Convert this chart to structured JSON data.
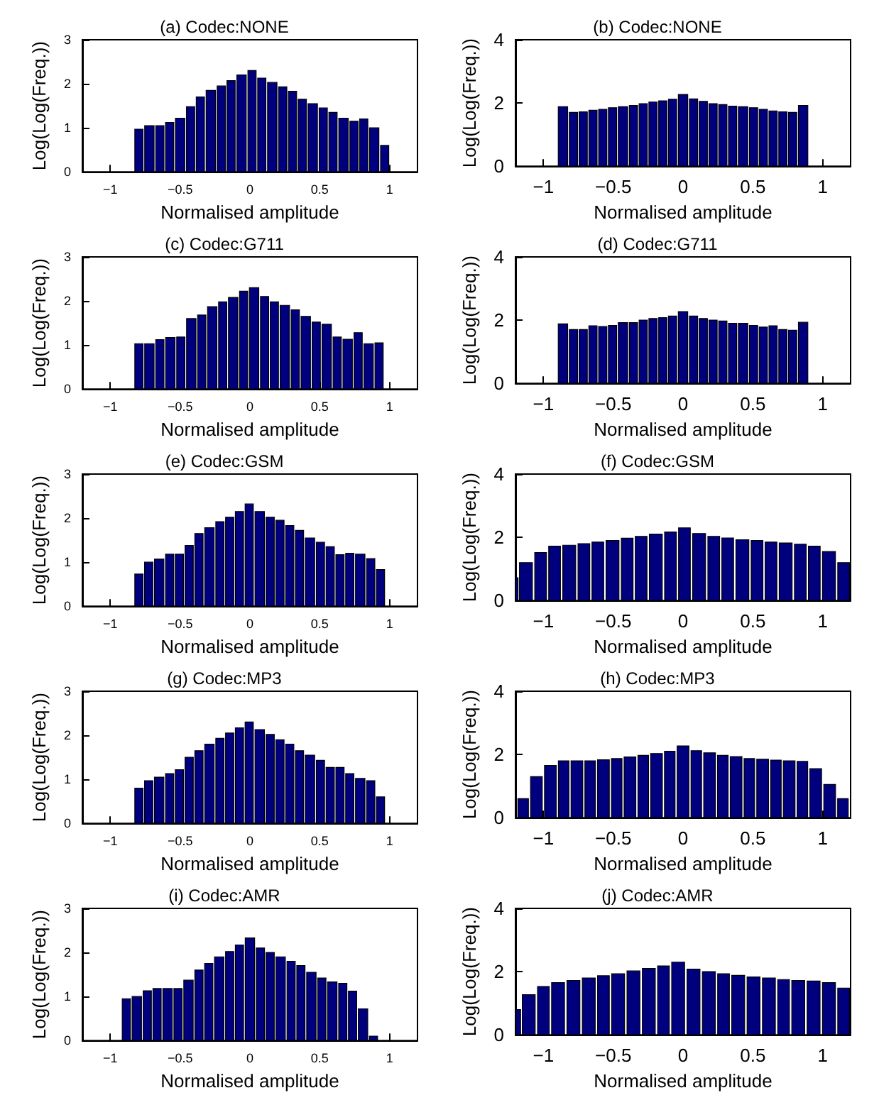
{
  "chart_data": [
    {
      "type": "histogram",
      "title": "(a) Codec:NONE",
      "xlabel": "Normalised amplitude",
      "ylabel": "Log(Log(Freq.))",
      "color": "#00007f",
      "xlim": [
        -1.2,
        1.2
      ],
      "xticks": [
        -1,
        -0.5,
        0,
        0.5,
        1
      ],
      "ylim": [
        0,
        3
      ],
      "yticks": [
        0,
        1,
        2,
        3
      ],
      "grid": false,
      "bins": [
        -0.83,
        -0.76,
        -0.68,
        -0.61,
        -0.54,
        -0.46,
        -0.39,
        -0.32,
        -0.24,
        -0.17,
        -0.1,
        -0.02,
        0.05,
        0.12,
        0.2,
        0.27,
        0.34,
        0.41,
        0.49,
        0.56,
        0.63,
        0.71,
        0.78,
        0.85,
        0.93,
        1.0
      ],
      "values": [
        0.97,
        1.05,
        1.05,
        1.12,
        1.22,
        1.48,
        1.7,
        1.85,
        1.95,
        2.07,
        2.2,
        2.3,
        2.13,
        2.03,
        1.93,
        1.83,
        1.65,
        1.55,
        1.45,
        1.35,
        1.22,
        1.15,
        1.2,
        1.0,
        0.6
      ]
    },
    {
      "type": "histogram",
      "title": "(b) Codec:NONE",
      "xlabel": "Normalised amplitude",
      "ylabel": "Log(Log(Freq.))",
      "color": "#00007f",
      "xlim": [
        -1.2,
        1.2
      ],
      "xticks": [
        -1,
        -0.5,
        0,
        0.5,
        1
      ],
      "ylim": [
        0,
        4
      ],
      "yticks": [
        0,
        2,
        4
      ],
      "grid": false,
      "bins": [
        -0.9,
        -0.82,
        -0.75,
        -0.68,
        -0.61,
        -0.54,
        -0.47,
        -0.39,
        -0.32,
        -0.25,
        -0.18,
        -0.11,
        -0.04,
        0.04,
        0.11,
        0.18,
        0.25,
        0.32,
        0.39,
        0.47,
        0.54,
        0.61,
        0.68,
        0.75,
        0.82,
        0.9
      ],
      "values": [
        1.88,
        1.7,
        1.72,
        1.77,
        1.8,
        1.85,
        1.88,
        1.92,
        1.98,
        2.03,
        2.07,
        2.12,
        2.27,
        2.13,
        2.05,
        1.98,
        1.95,
        1.9,
        1.88,
        1.85,
        1.8,
        1.75,
        1.72,
        1.7,
        1.92
      ]
    },
    {
      "type": "histogram",
      "title": "(c) Codec:G711",
      "xlabel": "Normalised amplitude",
      "ylabel": "Log(Log(Freq.))",
      "color": "#00007f",
      "xlim": [
        -1.2,
        1.2
      ],
      "xticks": [
        -1,
        -0.5,
        0,
        0.5,
        1
      ],
      "ylim": [
        0,
        3
      ],
      "yticks": [
        0,
        1,
        2,
        3
      ],
      "grid": false,
      "bins": [
        -0.83,
        -0.76,
        -0.68,
        -0.61,
        -0.53,
        -0.46,
        -0.38,
        -0.31,
        -0.23,
        -0.16,
        -0.08,
        -0.01,
        0.07,
        0.14,
        0.21,
        0.29,
        0.36,
        0.44,
        0.51,
        0.59,
        0.66,
        0.74,
        0.81,
        0.89,
        0.96
      ],
      "values": [
        1.03,
        1.03,
        1.12,
        1.17,
        1.18,
        1.6,
        1.68,
        1.87,
        1.98,
        2.08,
        2.22,
        2.3,
        2.1,
        1.98,
        1.9,
        1.8,
        1.65,
        1.52,
        1.47,
        1.18,
        1.13,
        1.28,
        1.03,
        1.05
      ]
    },
    {
      "type": "histogram",
      "title": "(d) Codec:G711",
      "xlabel": "Normalised amplitude",
      "ylabel": "Log(Log(Freq.))",
      "color": "#00007f",
      "xlim": [
        -1.2,
        1.2
      ],
      "xticks": [
        -1,
        -0.5,
        0,
        0.5,
        1
      ],
      "ylim": [
        0,
        4
      ],
      "yticks": [
        0,
        2,
        4
      ],
      "grid": false,
      "bins": [
        -0.9,
        -0.82,
        -0.75,
        -0.68,
        -0.61,
        -0.54,
        -0.47,
        -0.39,
        -0.32,
        -0.25,
        -0.18,
        -0.11,
        -0.04,
        0.04,
        0.11,
        0.18,
        0.25,
        0.32,
        0.39,
        0.47,
        0.54,
        0.61,
        0.68,
        0.75,
        0.82,
        0.9
      ],
      "values": [
        1.88,
        1.7,
        1.7,
        1.82,
        1.8,
        1.83,
        1.92,
        1.92,
        2.0,
        2.05,
        2.08,
        2.13,
        2.27,
        2.13,
        2.05,
        2.0,
        1.97,
        1.9,
        1.9,
        1.83,
        1.78,
        1.82,
        1.7,
        1.68,
        1.93
      ]
    },
    {
      "type": "histogram",
      "title": "(e) Codec:GSM",
      "xlabel": "Normalised amplitude",
      "ylabel": "Log(Log(Freq.))",
      "color": "#00007f",
      "xlim": [
        -1.2,
        1.2
      ],
      "xticks": [
        -1,
        -0.5,
        0,
        0.5,
        1
      ],
      "ylim": [
        0,
        3
      ],
      "yticks": [
        0,
        1,
        2,
        3
      ],
      "grid": false,
      "bins": [
        -0.83,
        -0.76,
        -0.69,
        -0.61,
        -0.54,
        -0.47,
        -0.4,
        -0.33,
        -0.25,
        -0.18,
        -0.11,
        -0.04,
        0.03,
        0.11,
        0.18,
        0.25,
        0.32,
        0.39,
        0.47,
        0.54,
        0.61,
        0.68,
        0.75,
        0.83,
        0.9,
        0.97
      ],
      "values": [
        0.73,
        1.0,
        1.07,
        1.18,
        1.18,
        1.38,
        1.65,
        1.78,
        1.92,
        2.02,
        2.15,
        2.32,
        2.15,
        2.02,
        1.95,
        1.83,
        1.72,
        1.55,
        1.45,
        1.35,
        1.17,
        1.2,
        1.18,
        1.08,
        0.83
      ]
    },
    {
      "type": "histogram",
      "title": "(f) Codec:GSM",
      "xlabel": "Normalised amplitude",
      "ylabel": "Log(Log(Freq.))",
      "color": "#00007f",
      "xlim": [
        -1.2,
        1.2
      ],
      "xticks": [
        -1,
        -0.5,
        0,
        0.5,
        1
      ],
      "ylim": [
        0,
        4
      ],
      "yticks": [
        0,
        2,
        4
      ],
      "grid": false,
      "bins": [
        -1.2,
        -1.18,
        -1.07,
        -0.97,
        -0.87,
        -0.76,
        -0.66,
        -0.56,
        -0.45,
        -0.35,
        -0.25,
        -0.14,
        -0.04,
        0.06,
        0.17,
        0.27,
        0.37,
        0.48,
        0.58,
        0.68,
        0.79,
        0.89,
        0.99,
        1.1,
        1.2
      ],
      "values": [
        0.72,
        1.2,
        1.52,
        1.72,
        1.75,
        1.8,
        1.85,
        1.9,
        1.97,
        2.03,
        2.1,
        2.17,
        2.3,
        2.12,
        2.03,
        1.98,
        1.92,
        1.9,
        1.85,
        1.82,
        1.78,
        1.72,
        1.55,
        1.2
      ]
    },
    {
      "type": "histogram",
      "title": "(g) Codec:MP3",
      "xlabel": "Normalised amplitude",
      "ylabel": "Log(Log(Freq.))",
      "color": "#00007f",
      "xlim": [
        -1.2,
        1.2
      ],
      "xticks": [
        -1,
        -0.5,
        0,
        0.5,
        1
      ],
      "ylim": [
        0,
        3
      ],
      "yticks": [
        0,
        1,
        2,
        3
      ],
      "grid": false,
      "bins": [
        -0.83,
        -0.76,
        -0.69,
        -0.61,
        -0.54,
        -0.47,
        -0.4,
        -0.33,
        -0.25,
        -0.18,
        -0.11,
        -0.04,
        0.03,
        0.11,
        0.18,
        0.25,
        0.32,
        0.39,
        0.47,
        0.54,
        0.61,
        0.68,
        0.75,
        0.83,
        0.9,
        0.97
      ],
      "values": [
        0.8,
        0.97,
        1.05,
        1.13,
        1.22,
        1.5,
        1.65,
        1.8,
        1.93,
        2.05,
        2.17,
        2.3,
        2.13,
        2.02,
        1.9,
        1.8,
        1.65,
        1.55,
        1.43,
        1.27,
        1.27,
        1.13,
        1.02,
        0.97,
        0.6
      ]
    },
    {
      "type": "histogram",
      "title": "(h) Codec:MP3",
      "xlabel": "Normalised amplitude",
      "ylabel": "Log(Log(Freq.))",
      "color": "#00007f",
      "xlim": [
        -1.2,
        1.2
      ],
      "xticks": [
        -1,
        -0.5,
        0,
        0.5,
        1
      ],
      "ylim": [
        0,
        4
      ],
      "yticks": [
        0,
        2,
        4
      ],
      "grid": false,
      "bins": [
        -1.19,
        -1.1,
        -1.0,
        -0.9,
        -0.81,
        -0.71,
        -0.62,
        -0.52,
        -0.43,
        -0.33,
        -0.24,
        -0.14,
        -0.05,
        0.05,
        0.14,
        0.24,
        0.33,
        0.43,
        0.52,
        0.62,
        0.71,
        0.81,
        0.9,
        1.0,
        1.1,
        1.19
      ],
      "values": [
        0.6,
        1.3,
        1.65,
        1.8,
        1.8,
        1.8,
        1.83,
        1.87,
        1.92,
        1.97,
        2.03,
        2.1,
        2.27,
        2.12,
        2.05,
        1.97,
        1.93,
        1.87,
        1.85,
        1.82,
        1.8,
        1.78,
        1.55,
        1.05,
        0.6
      ]
    },
    {
      "type": "histogram",
      "title": "(i) Codec:AMR",
      "xlabel": "Normalised amplitude",
      "ylabel": "Log(Log(Freq.))",
      "color": "#00007f",
      "xlim": [
        -1.2,
        1.2
      ],
      "xticks": [
        -1,
        -0.5,
        0,
        0.5,
        1
      ],
      "ylim": [
        0,
        3
      ],
      "yticks": [
        0,
        1,
        2,
        3
      ],
      "grid": false,
      "bins": [
        -0.92,
        -0.85,
        -0.77,
        -0.7,
        -0.63,
        -0.55,
        -0.48,
        -0.4,
        -0.33,
        -0.26,
        -0.18,
        -0.11,
        -0.04,
        0.04,
        0.11,
        0.18,
        0.26,
        0.33,
        0.4,
        0.48,
        0.55,
        0.63,
        0.7,
        0.77,
        0.85,
        0.92
      ],
      "values": [
        0.95,
        1.0,
        1.13,
        1.18,
        1.18,
        1.18,
        1.37,
        1.6,
        1.75,
        1.9,
        2.02,
        2.17,
        2.33,
        2.1,
        2.0,
        1.9,
        1.8,
        1.7,
        1.55,
        1.42,
        1.33,
        1.3,
        1.12,
        0.72,
        0.1
      ]
    },
    {
      "type": "histogram",
      "title": "(j) Codec:AMR",
      "xlabel": "Normalised amplitude",
      "ylabel": "Log(Log(Freq.))",
      "color": "#00007f",
      "xlim": [
        -1.2,
        1.2
      ],
      "xticks": [
        -1,
        -0.5,
        0,
        0.5,
        1
      ],
      "ylim": [
        0,
        4
      ],
      "yticks": [
        0,
        2,
        4
      ],
      "grid": false,
      "bins": [
        -1.2,
        -1.16,
        -1.05,
        -0.95,
        -0.84,
        -0.73,
        -0.62,
        -0.52,
        -0.41,
        -0.3,
        -0.19,
        -0.09,
        0.02,
        0.13,
        0.24,
        0.34,
        0.45,
        0.56,
        0.67,
        0.77,
        0.88,
        0.99,
        1.1,
        1.2
      ],
      "values": [
        0.8,
        1.27,
        1.53,
        1.65,
        1.72,
        1.8,
        1.87,
        1.93,
        2.02,
        2.1,
        2.18,
        2.3,
        2.08,
        2.0,
        1.93,
        1.88,
        1.83,
        1.8,
        1.75,
        1.72,
        1.7,
        1.65,
        1.48
      ]
    }
  ]
}
